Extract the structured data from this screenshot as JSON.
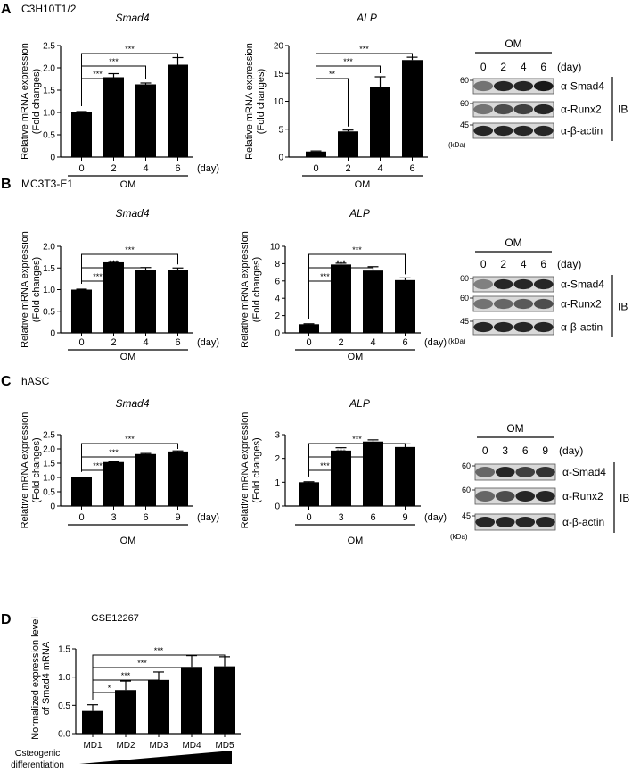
{
  "figure": {
    "panels": [
      {
        "letter": "A",
        "cell": "C3H10T1/2"
      },
      {
        "letter": "B",
        "cell": "MC3T3-E1"
      },
      {
        "letter": "C",
        "cell": "hASC"
      },
      {
        "letter": "D",
        "cell": ""
      }
    ],
    "common": {
      "ylabel_line1": "Relative mRNA expression",
      "ylabel_line2": "(Fold changes)",
      "group_label": "OM",
      "day_unit": "(day)"
    },
    "blots": [
      {
        "group": "OM",
        "lanes": [
          "0",
          "2",
          "4",
          "6"
        ],
        "unit": "(day)",
        "bands": [
          "α-Smad4",
          "α-Runx2",
          "α-β-actin"
        ],
        "markers": [
          "60",
          "60",
          "45"
        ],
        "kda": "(kDa)",
        "ib": "IB"
      },
      {
        "group": "OM",
        "lanes": [
          "0",
          "2",
          "4",
          "6"
        ],
        "unit": "(day)",
        "bands": [
          "α-Smad4",
          "α-Runx2",
          "α-β-actin"
        ],
        "markers": [
          "60",
          "60",
          "45"
        ],
        "kda": "(kDa)",
        "ib": "IB"
      },
      {
        "group": "OM",
        "lanes": [
          "0",
          "3",
          "6",
          "9"
        ],
        "unit": "(day)",
        "bands": [
          "α-Smad4",
          "α-Runx2",
          "α-β-actin"
        ],
        "markers": [
          "60",
          "60",
          "45"
        ],
        "kda": "(kDa)",
        "ib": "IB"
      }
    ],
    "panelD": {
      "title": "GSE12267",
      "ylabel_line1": "Normalized expression level",
      "ylabel_line2": "of Smad4 mRNA",
      "xlabel_line1": "Osteogenic",
      "xlabel_line2": "differentiation"
    }
  },
  "chart_data": [
    {
      "id": "A-Smad4",
      "type": "bar",
      "title": "Smad4",
      "title_italic": true,
      "categories": [
        "0",
        "2",
        "4",
        "6"
      ],
      "values": [
        1.0,
        1.79,
        1.63,
        2.07
      ],
      "errors": [
        0.02,
        0.08,
        0.03,
        0.16
      ],
      "ylim": [
        0,
        2.5
      ],
      "yticks": [
        0,
        0.5,
        1.0,
        1.5,
        2.0,
        2.5
      ],
      "ytick_labels": [
        "0",
        "0.5",
        "1.0",
        "1.5",
        "2.0",
        "2.5"
      ],
      "group_label": "OM",
      "unit_label": "(day)",
      "significance": [
        {
          "to": 1,
          "label": "***"
        },
        {
          "to": 2,
          "label": "***"
        },
        {
          "to": 3,
          "label": "***"
        }
      ]
    },
    {
      "id": "A-ALP",
      "type": "bar",
      "title": "ALP",
      "title_italic": true,
      "categories": [
        "0",
        "2",
        "4",
        "6"
      ],
      "values": [
        1.0,
        4.6,
        12.6,
        17.4
      ],
      "errors": [
        0.1,
        0.25,
        1.8,
        0.5
      ],
      "ylim": [
        0,
        20
      ],
      "yticks": [
        0,
        5,
        10,
        15,
        20
      ],
      "ytick_labels": [
        "0",
        "5",
        "10",
        "15",
        "20"
      ],
      "group_label": "OM",
      "unit_label": "",
      "significance": [
        {
          "to": 1,
          "label": "**"
        },
        {
          "to": 2,
          "label": "***"
        },
        {
          "to": 3,
          "label": "***"
        }
      ]
    },
    {
      "id": "B-Smad4",
      "type": "bar",
      "title": "Smad4",
      "title_italic": true,
      "categories": [
        "0",
        "2",
        "4",
        "6"
      ],
      "values": [
        1.0,
        1.63,
        1.46,
        1.46
      ],
      "errors": [
        0.01,
        0.02,
        0.05,
        0.04
      ],
      "ylim": [
        0,
        2.0
      ],
      "yticks": [
        0,
        0.5,
        1.0,
        1.5,
        2.0
      ],
      "ytick_labels": [
        "0",
        "0.5",
        "1.0",
        "1.5",
        "2.0"
      ],
      "group_label": "OM",
      "unit_label": "(day)",
      "significance": [
        {
          "to": 1,
          "label": "***"
        },
        {
          "to": 2,
          "label": "***"
        },
        {
          "to": 3,
          "label": "***"
        }
      ]
    },
    {
      "id": "B-ALP",
      "type": "bar",
      "title": "ALP",
      "title_italic": true,
      "categories": [
        "0",
        "2",
        "4",
        "6"
      ],
      "values": [
        1.0,
        7.9,
        7.2,
        6.1
      ],
      "errors": [
        0.05,
        0.15,
        0.45,
        0.25
      ],
      "ylim": [
        0,
        10
      ],
      "yticks": [
        0,
        2,
        4,
        6,
        8,
        10
      ],
      "ytick_labels": [
        "0",
        "2",
        "4",
        "6",
        "8",
        "10"
      ],
      "group_label": "OM",
      "unit_label": "(day)",
      "significance": [
        {
          "to": 1,
          "label": "***"
        },
        {
          "to": 2,
          "label": "***"
        },
        {
          "to": 3,
          "label": "***"
        }
      ]
    },
    {
      "id": "C-Smad4",
      "type": "bar",
      "title": "Smad4",
      "title_italic": true,
      "categories": [
        "0",
        "3",
        "6",
        "9"
      ],
      "values": [
        1.0,
        1.54,
        1.82,
        1.91
      ],
      "errors": [
        0.01,
        0.01,
        0.02,
        0.02
      ],
      "ylim": [
        0,
        2.5
      ],
      "yticks": [
        0,
        0.5,
        1.0,
        1.5,
        2.0,
        2.5
      ],
      "ytick_labels": [
        "0",
        "0.5",
        "1.0",
        "1.5",
        "2.0",
        "2.5"
      ],
      "group_label": "OM",
      "unit_label": "(day)",
      "significance": [
        {
          "to": 1,
          "label": "***"
        },
        {
          "to": 2,
          "label": "***"
        },
        {
          "to": 3,
          "label": "***"
        }
      ]
    },
    {
      "id": "C-ALP",
      "type": "bar",
      "title": "ALP",
      "title_italic": true,
      "categories": [
        "0",
        "3",
        "6",
        "9"
      ],
      "values": [
        1.0,
        2.33,
        2.71,
        2.48
      ],
      "errors": [
        0.02,
        0.12,
        0.07,
        0.13
      ],
      "ylim": [
        0,
        3
      ],
      "yticks": [
        0,
        1,
        2,
        3
      ],
      "ytick_labels": [
        "0",
        "1",
        "2",
        "3"
      ],
      "group_label": "OM",
      "unit_label": "(day)",
      "significance": [
        {
          "to": 1,
          "label": "***"
        },
        {
          "to": 2,
          "label": "***"
        },
        {
          "to": 3,
          "label": "***"
        }
      ]
    },
    {
      "id": "D-GSE12267",
      "type": "bar",
      "title": "",
      "categories": [
        "MD1",
        "MD2",
        "MD3",
        "MD4",
        "MD5"
      ],
      "values": [
        0.4,
        0.77,
        0.95,
        1.18,
        1.19
      ],
      "errors": [
        0.11,
        0.16,
        0.14,
        0.2,
        0.17
      ],
      "ylim": [
        0,
        1.5
      ],
      "yticks": [
        0,
        0.5,
        1.0,
        1.5
      ],
      "ytick_labels": [
        "0.0",
        "0.5",
        "1.0",
        "1.5"
      ],
      "group_label": "",
      "unit_label": "",
      "significance": [
        {
          "to": 1,
          "label": "*"
        },
        {
          "to": 2,
          "label": "***"
        },
        {
          "to": 3,
          "label": "***"
        },
        {
          "to": 4,
          "label": "***"
        }
      ]
    }
  ]
}
